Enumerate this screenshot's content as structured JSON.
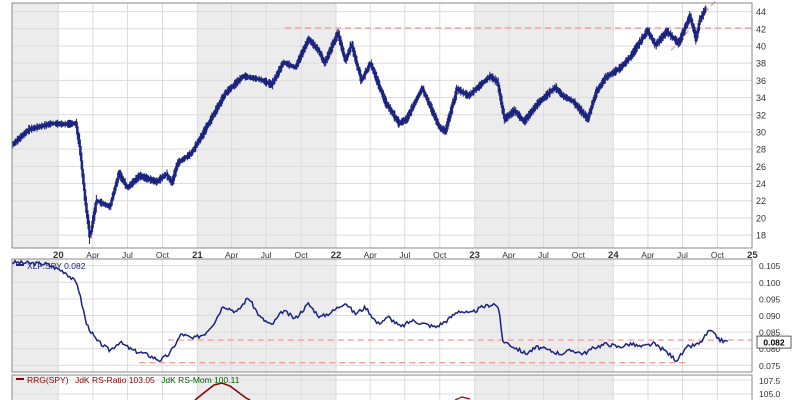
{
  "chart_data": [
    {
      "type": "ohlc",
      "title": "",
      "xlabel": "",
      "ylabel": "",
      "ylim": [
        16.5,
        45
      ],
      "y_ticks": [
        18,
        20,
        22,
        24,
        26,
        28,
        30,
        32,
        34,
        36,
        38,
        40,
        42,
        44
      ],
      "x_range": [
        "2019-09-01",
        "2024-12-31"
      ],
      "x_tick_labels": [
        {
          "date": "2020-01-01",
          "label": "20",
          "major": true
        },
        {
          "date": "2020-04-01",
          "label": "Apr",
          "major": false
        },
        {
          "date": "2020-07-01",
          "label": "Jul",
          "major": false
        },
        {
          "date": "2020-10-01",
          "label": "Oct",
          "major": false
        },
        {
          "date": "2021-01-01",
          "label": "21",
          "major": true
        },
        {
          "date": "2021-04-01",
          "label": "Apr",
          "major": false
        },
        {
          "date": "2021-07-01",
          "label": "Jul",
          "major": false
        },
        {
          "date": "2021-10-01",
          "label": "Oct",
          "major": false
        },
        {
          "date": "2022-01-01",
          "label": "22",
          "major": true
        },
        {
          "date": "2022-04-01",
          "label": "Apr",
          "major": false
        },
        {
          "date": "2022-07-01",
          "label": "Jul",
          "major": false
        },
        {
          "date": "2022-10-01",
          "label": "Oct",
          "major": false
        },
        {
          "date": "2023-01-01",
          "label": "23",
          "major": true
        },
        {
          "date": "2023-04-01",
          "label": "Apr",
          "major": false
        },
        {
          "date": "2023-07-01",
          "label": "Jul",
          "major": false
        },
        {
          "date": "2023-10-01",
          "label": "Oct",
          "major": false
        },
        {
          "date": "2024-01-01",
          "label": "24",
          "major": true
        },
        {
          "date": "2024-04-01",
          "label": "Apr",
          "major": false
        },
        {
          "date": "2024-07-01",
          "label": "Jul",
          "major": false
        },
        {
          "date": "2024-10-01",
          "label": "Oct",
          "major": false
        },
        {
          "date": "2025-01-01",
          "label": "25",
          "major": true
        }
      ],
      "price_path": [
        [
          "2019-09-01",
          28.5
        ],
        [
          "2019-10-15",
          30.3
        ],
        [
          "2019-12-15",
          31.0
        ],
        [
          "2020-01-15",
          30.9
        ],
        [
          "2020-02-15",
          31.0
        ],
        [
          "2020-02-25",
          28.5
        ],
        [
          "2020-03-10",
          22.5
        ],
        [
          "2020-03-23",
          17.8
        ],
        [
          "2020-04-10",
          22.0
        ],
        [
          "2020-05-15",
          21.3
        ],
        [
          "2020-06-08",
          25.2
        ],
        [
          "2020-06-30",
          23.5
        ],
        [
          "2020-08-01",
          24.9
        ],
        [
          "2020-09-15",
          24.2
        ],
        [
          "2020-10-10",
          25.1
        ],
        [
          "2020-10-25",
          24.1
        ],
        [
          "2020-11-10",
          26.4
        ],
        [
          "2020-12-15",
          27.5
        ],
        [
          "2021-01-15",
          29.8
        ],
        [
          "2021-03-15",
          34.5
        ],
        [
          "2021-05-01",
          36.5
        ],
        [
          "2021-06-15",
          36.1
        ],
        [
          "2021-07-15",
          35.5
        ],
        [
          "2021-08-15",
          38.1
        ],
        [
          "2021-09-15",
          37.5
        ],
        [
          "2021-10-20",
          40.8
        ],
        [
          "2021-11-15",
          39.5
        ],
        [
          "2021-12-01",
          38.0
        ],
        [
          "2022-01-05",
          41.5
        ],
        [
          "2022-01-25",
          38.3
        ],
        [
          "2022-02-10",
          40.2
        ],
        [
          "2022-03-08",
          36.0
        ],
        [
          "2022-04-01",
          38.0
        ],
        [
          "2022-05-10",
          33.5
        ],
        [
          "2022-06-15",
          31.0
        ],
        [
          "2022-07-05",
          31.5
        ],
        [
          "2022-08-15",
          35.1
        ],
        [
          "2022-09-30",
          30.5
        ],
        [
          "2022-10-15",
          30.1
        ],
        [
          "2022-11-15",
          35.0
        ],
        [
          "2022-12-15",
          34.2
        ],
        [
          "2023-02-10",
          36.5
        ],
        [
          "2023-03-01",
          35.8
        ],
        [
          "2023-03-20",
          31.5
        ],
        [
          "2023-04-15",
          32.5
        ],
        [
          "2023-05-10",
          31.2
        ],
        [
          "2023-06-15",
          33.3
        ],
        [
          "2023-07-31",
          35.2
        ],
        [
          "2023-08-20",
          34.2
        ],
        [
          "2023-09-15",
          33.6
        ],
        [
          "2023-10-10",
          32.3
        ],
        [
          "2023-10-25",
          31.5
        ],
        [
          "2023-11-15",
          34.5
        ],
        [
          "2023-12-10",
          36.3
        ],
        [
          "2024-01-20",
          37.5
        ],
        [
          "2024-02-15",
          38.8
        ],
        [
          "2024-03-30",
          41.8
        ],
        [
          "2024-04-20",
          40.1
        ],
        [
          "2024-05-20",
          41.7
        ],
        [
          "2024-06-20",
          40.3
        ],
        [
          "2024-07-20",
          43.5
        ],
        [
          "2024-08-05",
          40.8
        ],
        [
          "2024-08-15",
          43.0
        ],
        [
          "2024-09-01",
          44.5
        ]
      ],
      "reference_lines": [
        {
          "style": "dashed",
          "color": "#f0a0a0",
          "from": [
            "2021-08-20",
            42.1
          ],
          "to": [
            "2024-12-31",
            42.1
          ]
        },
        {
          "style": "dashed",
          "color": "#f0a0a0",
          "from": [
            "2024-06-01",
            39.5
          ],
          "to": [
            "2024-09-25",
            45.2
          ]
        }
      ],
      "bar_color": "#1a237e",
      "grid": true
    },
    {
      "type": "line",
      "legend": "XLF:SPY 0.082",
      "last_value": "0.082",
      "ylim": [
        0.073,
        0.107
      ],
      "y_ticks": [
        0.075,
        0.08,
        0.085,
        0.09,
        0.095,
        0.1,
        0.105
      ],
      "y_tick_labels": [
        "0.075",
        "0.080",
        "0.085",
        "0.090",
        "0.095",
        "0.100",
        "0.105"
      ],
      "x_range": [
        "2019-09-01",
        "2024-12-31"
      ],
      "series": [
        {
          "values": [
            [
              "2019-09-01",
              0.106
            ],
            [
              "2019-12-01",
              0.1055
            ],
            [
              "2020-01-20",
              0.103
            ],
            [
              "2020-02-20",
              0.0995
            ],
            [
              "2020-03-15",
              0.0875
            ],
            [
              "2020-04-10",
              0.0825
            ],
            [
              "2020-05-15",
              0.0795
            ],
            [
              "2020-06-10",
              0.082
            ],
            [
              "2020-07-15",
              0.0795
            ],
            [
              "2020-08-15",
              0.0785
            ],
            [
              "2020-09-25",
              0.0765
            ],
            [
              "2020-10-20",
              0.0785
            ],
            [
              "2020-11-20",
              0.0845
            ],
            [
              "2020-12-20",
              0.083
            ],
            [
              "2021-01-20",
              0.0845
            ],
            [
              "2021-02-15",
              0.088
            ],
            [
              "2021-03-10",
              0.093
            ],
            [
              "2021-04-15",
              0.091
            ],
            [
              "2021-05-15",
              0.0955
            ],
            [
              "2021-06-15",
              0.0895
            ],
            [
              "2021-07-15",
              0.087
            ],
            [
              "2021-08-15",
              0.0915
            ],
            [
              "2021-09-15",
              0.089
            ],
            [
              "2021-10-20",
              0.0935
            ],
            [
              "2021-11-20",
              0.0895
            ],
            [
              "2021-12-20",
              0.091
            ],
            [
              "2022-01-25",
              0.094
            ],
            [
              "2022-02-20",
              0.0905
            ],
            [
              "2022-03-20",
              0.0925
            ],
            [
              "2022-04-20",
              0.0875
            ],
            [
              "2022-05-20",
              0.0895
            ],
            [
              "2022-06-20",
              0.0865
            ],
            [
              "2022-07-20",
              0.0885
            ],
            [
              "2022-08-20",
              0.0875
            ],
            [
              "2022-09-20",
              0.0865
            ],
            [
              "2022-10-20",
              0.0885
            ],
            [
              "2022-11-20",
              0.0915
            ],
            [
              "2022-12-20",
              0.0905
            ],
            [
              "2023-01-20",
              0.0925
            ],
            [
              "2023-02-20",
              0.0935
            ],
            [
              "2023-03-05",
              0.0925
            ],
            [
              "2023-03-15",
              0.0825
            ],
            [
              "2023-04-15",
              0.0805
            ],
            [
              "2023-05-15",
              0.0785
            ],
            [
              "2023-06-15",
              0.0805
            ],
            [
              "2023-07-15",
              0.0795
            ],
            [
              "2023-08-15",
              0.0785
            ],
            [
              "2023-09-15",
              0.0795
            ],
            [
              "2023-10-15",
              0.0785
            ],
            [
              "2023-11-15",
              0.0805
            ],
            [
              "2023-12-15",
              0.0815
            ],
            [
              "2024-01-15",
              0.0805
            ],
            [
              "2024-02-15",
              0.0815
            ],
            [
              "2024-03-15",
              0.0805
            ],
            [
              "2024-04-15",
              0.0815
            ],
            [
              "2024-05-15",
              0.0795
            ],
            [
              "2024-06-15",
              0.0765
            ],
            [
              "2024-07-15",
              0.0805
            ],
            [
              "2024-08-15",
              0.0815
            ],
            [
              "2024-09-10",
              0.0855
            ],
            [
              "2024-10-10",
              0.0825
            ],
            [
              "2024-10-31",
              0.082
            ]
          ]
        }
      ],
      "reference_lines": [
        {
          "style": "dashed",
          "color": "#f0a0a0",
          "from": [
            "2020-10-15",
            0.0826
          ],
          "to": [
            "2024-12-31",
            0.0826
          ]
        },
        {
          "style": "dashed",
          "color": "#f0a0a0",
          "from": [
            "2020-08-01",
            0.0758
          ],
          "to": [
            "2024-07-10",
            0.0758
          ]
        }
      ],
      "line_color": "#1a237e",
      "grid": true
    },
    {
      "type": "line",
      "legend_parts": [
        {
          "text": "RRG(SPY)",
          "color": "#8b0000"
        },
        {
          "text": "JdK RS-Ratio 103.05",
          "color": "#8b0000"
        },
        {
          "text": "JdK RS-Mom 100.11",
          "color": "#006400"
        }
      ],
      "y_tick_labels": [
        "107.5",
        "105.0"
      ],
      "line_color": "#8b0000"
    }
  ]
}
